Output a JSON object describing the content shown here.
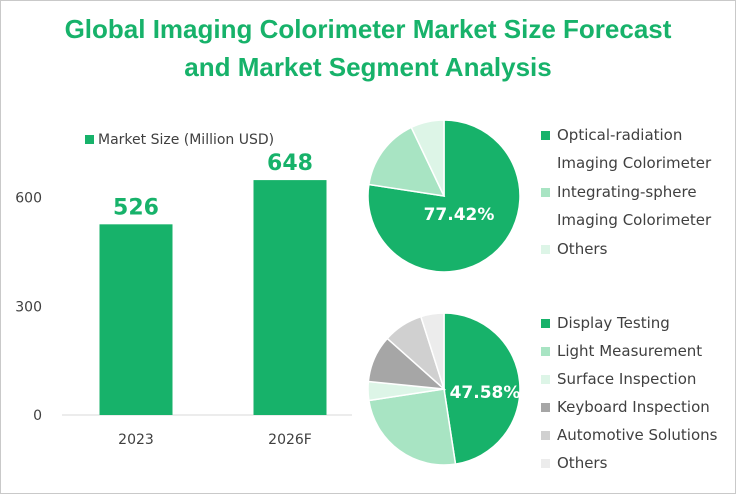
{
  "title": {
    "line1": "Global Imaging Colorimeter Market Size Forecast",
    "line2": "and Market Segment Analysis"
  },
  "colors": {
    "accent": "#17b26a",
    "title": "#17b26a"
  },
  "chart_data": [
    {
      "type": "bar",
      "legend": "Market Size (Million USD)",
      "categories": [
        "2023",
        "2026F"
      ],
      "values": [
        526,
        648
      ],
      "value_labels": [
        "526",
        "648"
      ],
      "yticks": [
        "0",
        "300",
        "600"
      ],
      "ytick_values": [
        0,
        300,
        600
      ],
      "ylim": [
        0,
        720
      ],
      "color": "#17b26a",
      "grid": false,
      "legend_position": "top"
    },
    {
      "type": "pie",
      "labels": [
        "Optical-radiation Imaging Colorimeter",
        "Integrating-sphere Imaging Colorimeter",
        "Others"
      ],
      "legend_lines": [
        [
          "Optical-radiation",
          "Imaging Colorimeter"
        ],
        [
          "Integrating-sphere",
          "Imaging Colorimeter"
        ],
        [
          "Others"
        ]
      ],
      "values": [
        77.42,
        15.5,
        7.08
      ],
      "colors": [
        "#17b26a",
        "#a8e4c3",
        "#ddf5e7"
      ],
      "data_label": "77.42%",
      "legend_position": "right"
    },
    {
      "type": "pie",
      "labels": [
        "Display Testing",
        "Light Measurement",
        "Surface Inspection",
        "Keyboard Inspection",
        "Automotive Solutions",
        "Others"
      ],
      "values": [
        47.58,
        25.0,
        4.0,
        10.0,
        8.5,
        4.92
      ],
      "colors": [
        "#17b26a",
        "#a8e4c3",
        "#ddf5e7",
        "#a6a6a6",
        "#d0d0d0",
        "#ececec"
      ],
      "data_label": "47.58%",
      "legend_position": "right"
    }
  ]
}
